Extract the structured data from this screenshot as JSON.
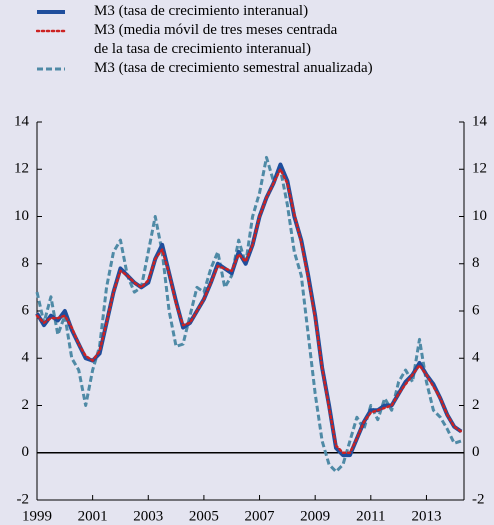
{
  "chart_data": {
    "type": "line",
    "x": [
      1999.0,
      1999.25,
      1999.5,
      1999.75,
      2000.0,
      2000.25,
      2000.5,
      2000.75,
      2001.0,
      2001.25,
      2001.5,
      2001.75,
      2002.0,
      2002.25,
      2002.5,
      2002.75,
      2003.0,
      2003.25,
      2003.5,
      2003.75,
      2004.0,
      2004.25,
      2004.5,
      2004.75,
      2005.0,
      2005.25,
      2005.5,
      2005.75,
      2006.0,
      2006.25,
      2006.5,
      2006.75,
      2007.0,
      2007.25,
      2007.5,
      2007.75,
      2008.0,
      2008.25,
      2008.5,
      2008.75,
      2009.0,
      2009.25,
      2009.5,
      2009.75,
      2010.0,
      2010.25,
      2010.5,
      2010.75,
      2011.0,
      2011.25,
      2011.5,
      2011.75,
      2012.0,
      2012.25,
      2012.5,
      2012.75,
      2013.0,
      2013.25,
      2013.5,
      2013.75,
      2014.0,
      2014.25
    ],
    "series": [
      {
        "name": "M3 (tasa de crecimiento interanual)",
        "color": "#1f4e9c",
        "style": "solid",
        "values": [
          5.9,
          5.4,
          5.8,
          5.6,
          6.0,
          5.2,
          4.6,
          4.0,
          3.9,
          4.2,
          5.5,
          6.8,
          7.8,
          7.5,
          7.2,
          7.0,
          7.2,
          8.2,
          8.8,
          7.6,
          6.4,
          5.3,
          5.5,
          6.0,
          6.5,
          7.2,
          8.0,
          7.8,
          7.6,
          8.5,
          8.0,
          8.8,
          10.0,
          10.8,
          11.4,
          12.2,
          11.5,
          10.0,
          9.0,
          7.5,
          5.8,
          3.6,
          2.0,
          0.2,
          -0.1,
          -0.1,
          0.6,
          1.3,
          1.8,
          1.8,
          2.0,
          2.0,
          2.5,
          3.0,
          3.3,
          3.8,
          3.3,
          2.9,
          2.3,
          1.6,
          1.1,
          0.9
        ]
      },
      {
        "name": "M3 (media móvil de tres meses centrada\nde la tasa de crecimiento interanual)",
        "color": "#cc2222",
        "style": "dotted",
        "values": [
          5.8,
          5.5,
          5.7,
          5.7,
          5.8,
          5.3,
          4.6,
          4.1,
          3.9,
          4.3,
          5.5,
          6.8,
          7.7,
          7.5,
          7.2,
          7.0,
          7.3,
          8.2,
          8.6,
          7.6,
          6.3,
          5.4,
          5.5,
          6.0,
          6.5,
          7.2,
          7.9,
          7.8,
          7.7,
          8.4,
          8.1,
          8.8,
          10.0,
          10.8,
          11.4,
          12.0,
          11.4,
          10.1,
          8.9,
          7.4,
          5.7,
          3.6,
          1.9,
          0.3,
          0.0,
          0.0,
          0.6,
          1.3,
          1.7,
          1.8,
          1.9,
          2.0,
          2.5,
          2.9,
          3.3,
          3.7,
          3.3,
          2.8,
          2.3,
          1.6,
          1.1,
          0.9
        ]
      },
      {
        "name": "M3 (tasa de crecimiento semestral anualizada)",
        "color": "#4f8aa6",
        "style": "dashed",
        "values": [
          6.8,
          5.5,
          6.6,
          5.0,
          5.8,
          4.0,
          3.5,
          2.0,
          3.5,
          4.5,
          7.0,
          8.5,
          9.0,
          7.5,
          6.8,
          7.0,
          8.5,
          10.0,
          8.5,
          6.0,
          4.5,
          4.6,
          5.8,
          7.0,
          6.8,
          7.8,
          8.5,
          7.0,
          7.5,
          9.0,
          8.0,
          10.0,
          11.0,
          12.5,
          11.5,
          12.0,
          10.5,
          8.5,
          7.5,
          5.0,
          2.5,
          0.5,
          -0.5,
          -0.8,
          -0.5,
          0.5,
          1.5,
          1.0,
          2.0,
          1.4,
          2.3,
          1.8,
          3.0,
          3.5,
          3.0,
          4.8,
          3.0,
          1.8,
          1.5,
          1.0,
          0.4,
          0.5
        ]
      }
    ],
    "xlim": [
      1999,
      2014.35
    ],
    "xticks": [
      1999,
      2001,
      2003,
      2005,
      2007,
      2009,
      2011,
      2013
    ],
    "ylim": [
      -2,
      14
    ],
    "yticks": [
      -2,
      0,
      2,
      4,
      6,
      8,
      10,
      12,
      14
    ]
  }
}
